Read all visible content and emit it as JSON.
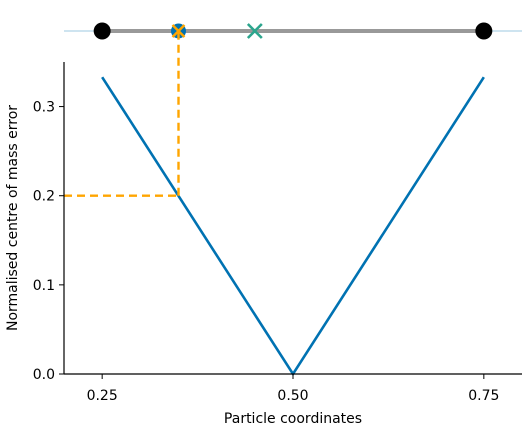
{
  "chart_data": {
    "type": "line",
    "title": "",
    "xlabel": "Particle coordinates",
    "ylabel": "Normalised centre of mass error",
    "xlim": [
      0.2,
      0.8
    ],
    "ylim": [
      0,
      0.35
    ],
    "xticks": [
      0.25,
      0.5,
      0.75
    ],
    "xtick_labels": [
      "0.25",
      "0.50",
      "0.75"
    ],
    "yticks": [
      0,
      0.1,
      0.2,
      0.3
    ],
    "ytick_labels": [
      "0.0",
      "0.1",
      "0.2",
      "0.3"
    ],
    "grid": false,
    "series": [
      {
        "color": "#0072b2",
        "x": [
          0.25,
          0.5,
          0.75
        ],
        "y": [
          0.333,
          0.0,
          0.333
        ]
      }
    ],
    "highlight": {
      "x": 0.35,
      "y": 0.2,
      "color": "#ffa500",
      "style": "dashed"
    },
    "particle_strip": {
      "bar_range": [
        0.25,
        0.75
      ],
      "bar_color": "#999999",
      "line_color": "#9ecae1",
      "endpoints": [
        0.25,
        0.75
      ],
      "endpoint_color": "#000000",
      "particle": 0.35,
      "particle_color": "#0072b2",
      "particle_cross_color": "#ffa500",
      "centre_of_mass": 0.45,
      "centre_of_mass_color": "#2ca58d"
    }
  }
}
